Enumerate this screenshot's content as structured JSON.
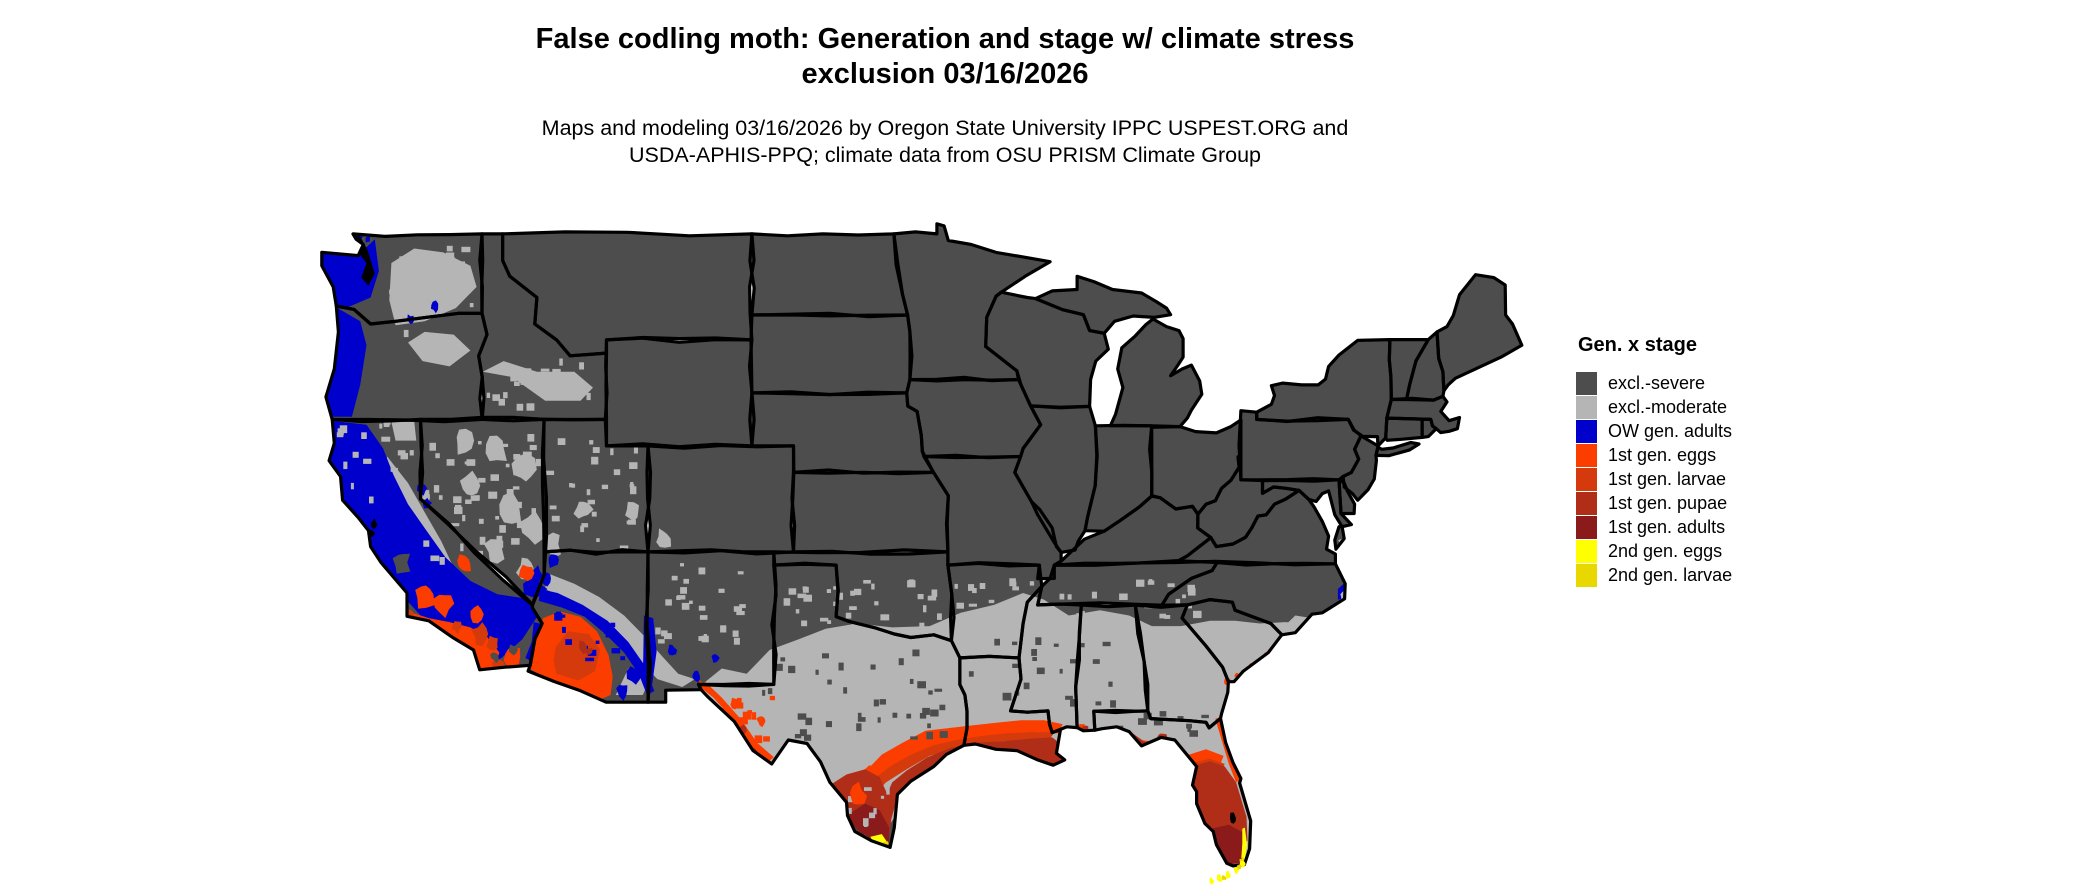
{
  "title": {
    "line1": "False codling moth: Generation and stage w/ climate stress",
    "line2": "exclusion 03/16/2026"
  },
  "subtitle": {
    "line1": "Maps and modeling 03/16/2026 by Oregon State University IPPC USPEST.ORG and",
    "line2": "USDA-APHIS-PPQ; climate data from OSU PRISM Climate Group"
  },
  "legend": {
    "title": "Gen. x stage",
    "items": [
      {
        "key": "severe",
        "label": "excl.-severe",
        "color": "#4d4d4d"
      },
      {
        "key": "moderate",
        "label": "excl.-moderate",
        "color": "#b5b5b5"
      },
      {
        "key": "ow_adults",
        "label": "OW gen. adults",
        "color": "#0000cc"
      },
      {
        "key": "g1_eggs",
        "label": "1st gen. eggs",
        "color": "#fc3d00"
      },
      {
        "key": "g1_larvae",
        "label": "1st gen. larvae",
        "color": "#d43a0c"
      },
      {
        "key": "g1_pupae",
        "label": "1st gen. pupae",
        "color": "#b02d18"
      },
      {
        "key": "g1_adults",
        "label": "1st gen. adults",
        "color": "#8b1a1a"
      },
      {
        "key": "g2_eggs",
        "label": "2nd gen. eggs",
        "color": "#ffff00"
      },
      {
        "key": "g2_larvae",
        "label": "2nd gen. larvae",
        "color": "#e9d800"
      }
    ]
  },
  "map": {
    "background": "#ffffff",
    "water": "#ffffff",
    "inland_water": "#000000",
    "state_border": "#000000",
    "base_fill_key": "severe"
  }
}
